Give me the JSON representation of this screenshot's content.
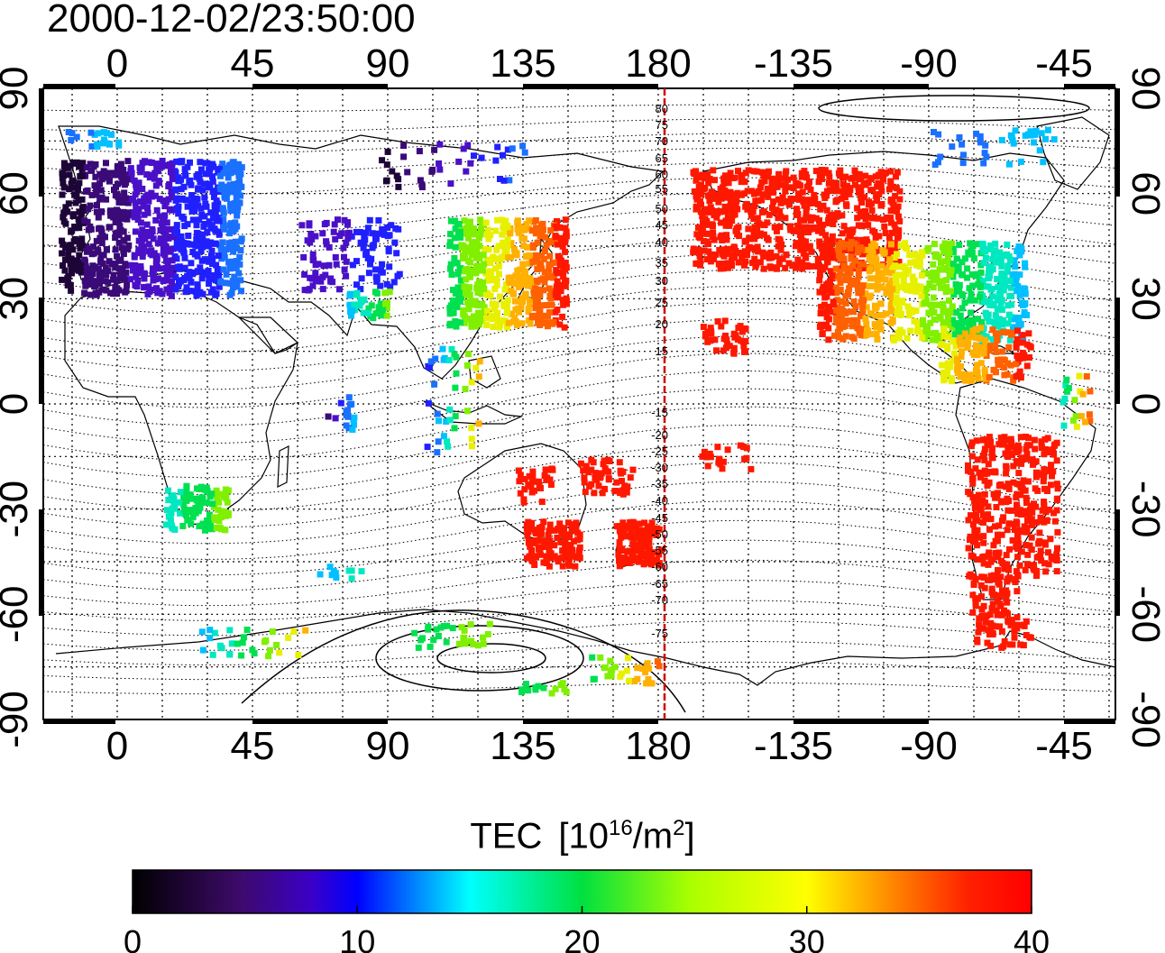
{
  "title": "2000-12-02/23:50:00",
  "map": {
    "lon_ticks": [
      "0",
      "45",
      "90",
      "135",
      "180",
      "-135",
      "-90",
      "-45"
    ],
    "lat_ticks": [
      "90",
      "60",
      "30",
      "0",
      "-30",
      "-60",
      "-90"
    ],
    "magnetic_latitude_labels": [
      "80",
      "75",
      "70",
      "65",
      "60",
      "55",
      "50",
      "45",
      "40",
      "35",
      "30",
      "25",
      "20",
      "15",
      "-15",
      "-20",
      "-25",
      "-30",
      "-35",
      "-40",
      "-45",
      "-50",
      "-55",
      "-60",
      "-65",
      "-70",
      "-75"
    ],
    "day_night_marker_color": "#cc0000"
  },
  "colorbar": {
    "label_main": "TEC",
    "label_units_open": "[10",
    "label_units_exp": "16",
    "label_units_mid": "/m",
    "label_units_exp2": "2",
    "label_units_close": "]",
    "ticks": [
      "0",
      "10",
      "20",
      "30",
      "40"
    ],
    "range": [
      0,
      40
    ],
    "colors": [
      "#000000",
      "#4b0082",
      "#0000ff",
      "#00ffff",
      "#00ff00",
      "#ffff00",
      "#ff8000",
      "#ff0000"
    ]
  }
}
